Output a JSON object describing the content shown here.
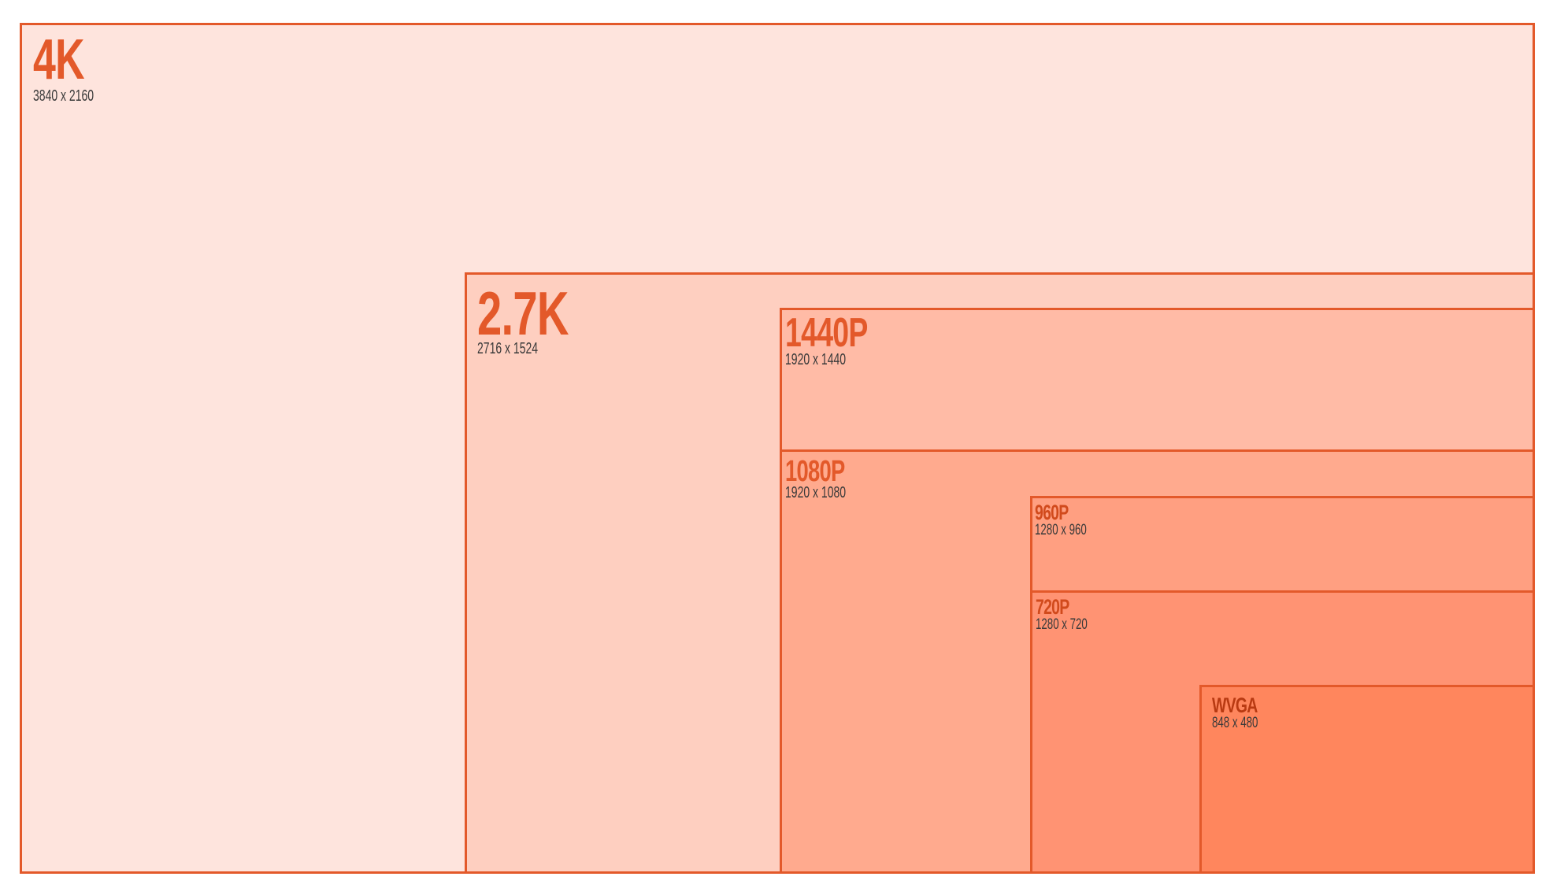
{
  "resolutions": [
    {
      "id": "4k",
      "name": "4K",
      "dimensions": "3840 x 2160",
      "fill": "#fee4dd",
      "name_color": "#e3592a"
    },
    {
      "id": "27k",
      "name": "2.7K",
      "dimensions": "2716 x 1524",
      "fill": "#fecfc0",
      "name_color": "#e3592a"
    },
    {
      "id": "1440",
      "name": "1440P",
      "dimensions": "1920 x 1440",
      "fill": "#ffbba6",
      "name_color": "#e3592a"
    },
    {
      "id": "1080",
      "name": "1080P",
      "dimensions": "1920 x 1080",
      "fill": "#ffaa8e",
      "name_color": "#e3592a"
    },
    {
      "id": "960",
      "name": "960P",
      "dimensions": "1280 x 960",
      "fill": "#ff9f81",
      "name_color": "#d14a1c"
    },
    {
      "id": "720",
      "name": "720P",
      "dimensions": "1280 x 720",
      "fill": "#ff9373",
      "name_color": "#d14a1c"
    },
    {
      "id": "wvga",
      "name": "WVGA",
      "dimensions": "848 x 480",
      "fill": "#ff865d",
      "name_color": "#b83a12"
    }
  ],
  "colors": {
    "border": "#e3592a",
    "dimension_text": "#3a3a3a",
    "background": "#ffffff"
  }
}
